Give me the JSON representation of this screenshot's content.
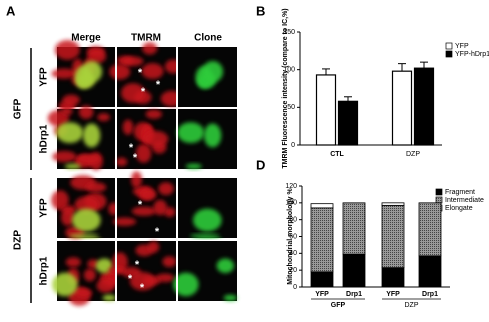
{
  "panel_a": {
    "label": "A",
    "columns": [
      "Merge",
      "TMRM",
      "Clone"
    ],
    "rows": [
      "YFP",
      "hDrp1",
      "YFP",
      "hDrp1"
    ],
    "groups": [
      "GFP",
      "DZP"
    ],
    "asterisk": "*"
  },
  "chart_data": [
    {
      "type": "bar",
      "panel_label": "B",
      "y_label": "TMRM Fluorescence intensity (compare to IC,%)",
      "categories": [
        "CTL",
        "DZP"
      ],
      "series": [
        {
          "name": "YFP",
          "color": "#ffffff",
          "values": [
            93,
            98
          ],
          "errors": [
            8,
            10
          ]
        },
        {
          "name": "YFP-hDrp1",
          "color": "#000000",
          "values": [
            58,
            102
          ],
          "errors": [
            6,
            8
          ]
        }
      ],
      "ylim": [
        0,
        150
      ],
      "yticks": [
        0,
        50,
        100,
        150
      ],
      "legend": "upper right"
    },
    {
      "type": "stacked_bar",
      "panel_label": "D",
      "y_label": "Mitochondrial morphology %",
      "categories": [
        "YFP",
        "Drp1",
        "YFP",
        "Drp1"
      ],
      "groups": [
        {
          "label": "GFP",
          "size": 2
        },
        {
          "label": "DZP",
          "size": 2
        }
      ],
      "series": [
        {
          "name": "Fragment",
          "color": "#000000",
          "values": [
            18,
            39,
            23,
            37
          ]
        },
        {
          "name": "Intermediate",
          "color": "#6e6e6e",
          "values": [
            76,
            61,
            74,
            63
          ]
        },
        {
          "name": "Elongate",
          "color": "#ffffff",
          "values": [
            5,
            0,
            3,
            0
          ]
        }
      ],
      "ylim": [
        0,
        120
      ],
      "yticks": [
        0,
        20,
        40,
        60,
        80,
        100,
        120
      ],
      "legend": "upper right"
    }
  ]
}
